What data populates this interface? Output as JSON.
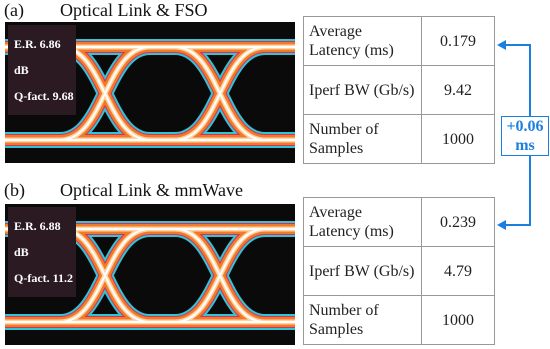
{
  "panels": [
    {
      "label": "(a)",
      "title": "Optical Link & FSO",
      "overlay": [
        "E.R. 6.86 dB",
        "Q-fact. 9.68"
      ],
      "rows": [
        [
          "Average Latency (ms)",
          "0.179"
        ],
        [
          "Iperf BW (Gb/s)",
          "9.42"
        ],
        [
          "Number of Samples",
          "1000"
        ]
      ]
    },
    {
      "label": "(b)",
      "title": "Optical Link & mmWave",
      "overlay": [
        "E.R. 6.88 dB",
        "Q-fact. 11.2"
      ],
      "rows": [
        [
          "Average Latency (ms)",
          "0.239"
        ],
        [
          "Iperf BW (Gb/s)",
          "4.79"
        ],
        [
          "Number of Samples",
          "1000"
        ]
      ]
    }
  ],
  "annotation": [
    "+0.06",
    "ms"
  ]
}
